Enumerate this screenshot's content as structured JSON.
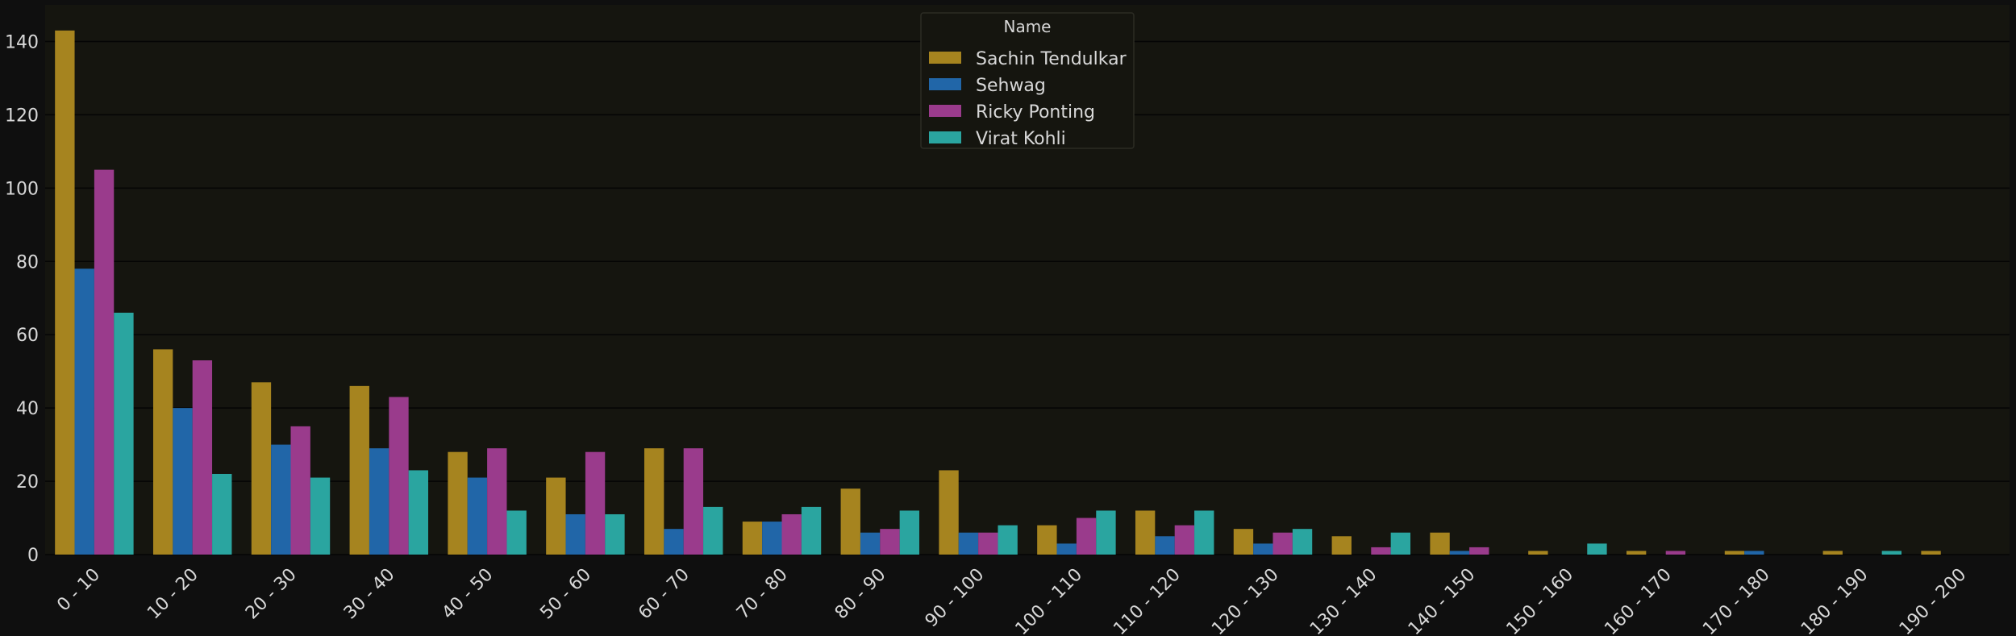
{
  "chart_data": {
    "type": "bar",
    "title": "",
    "xlabel": "",
    "ylabel": "",
    "ylim": [
      0,
      150
    ],
    "yticks": [
      0,
      20,
      40,
      60,
      80,
      100,
      120,
      140
    ],
    "grid": true,
    "legend": {
      "title": "Name",
      "placement": "top-center"
    },
    "categories": [
      "0 - 10",
      "10 - 20",
      "20 - 30",
      "30 - 40",
      "40 - 50",
      "50 - 60",
      "60 - 70",
      "70 - 80",
      "80 - 90",
      "90 - 100",
      "100 - 110",
      "110 - 120",
      "120 - 130",
      "130 - 140",
      "140 - 150",
      "150 - 160",
      "160 - 170",
      "170 - 180",
      "180 - 190",
      "190 - 200"
    ],
    "series": [
      {
        "name": "Sachin Tendulkar",
        "color": "#a6841f",
        "values": [
          143,
          56,
          47,
          46,
          28,
          21,
          29,
          9,
          18,
          23,
          8,
          12,
          7,
          5,
          6,
          1,
          1,
          1,
          1,
          1
        ]
      },
      {
        "name": "Sehwag",
        "color": "#2166a8",
        "values": [
          78,
          40,
          30,
          29,
          21,
          11,
          7,
          9,
          6,
          6,
          3,
          5,
          3,
          0,
          1,
          0,
          0,
          1,
          0,
          0
        ]
      },
      {
        "name": "Ricky Ponting",
        "color": "#9a3b8c",
        "values": [
          105,
          53,
          35,
          43,
          29,
          28,
          29,
          11,
          7,
          6,
          10,
          8,
          6,
          2,
          2,
          0,
          1,
          0,
          0,
          0
        ]
      },
      {
        "name": "Virat Kohli",
        "color": "#2aa5a0",
        "values": [
          66,
          22,
          21,
          23,
          12,
          11,
          13,
          13,
          12,
          8,
          12,
          12,
          7,
          6,
          0,
          3,
          0,
          0,
          1,
          0
        ]
      }
    ]
  },
  "colors": {
    "page_background": "#0f0f0f",
    "plot_background": "#15150f",
    "grid": "#050505",
    "text": "#d8d8d8"
  }
}
